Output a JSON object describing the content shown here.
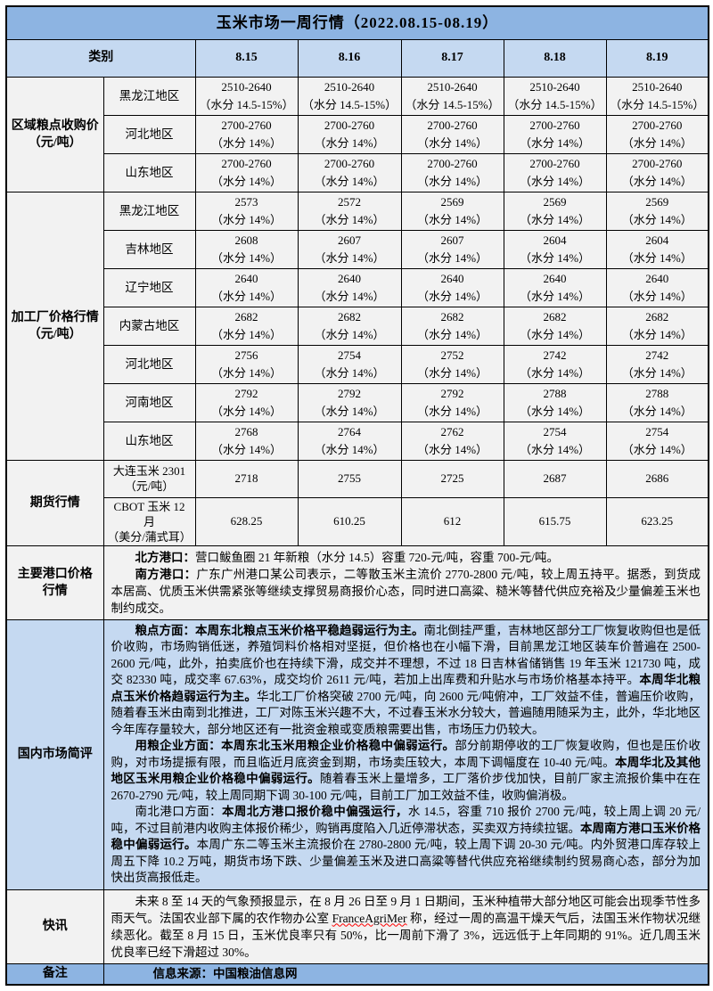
{
  "title": "玉米市场一周行情（2022.08.15-08.19）",
  "header": {
    "category": "类别",
    "dates": [
      "8.15",
      "8.16",
      "8.17",
      "8.18",
      "8.19"
    ]
  },
  "purchase": {
    "label_line1": "区域粮点收购价",
    "label_line2": "（元/吨）",
    "rows": [
      {
        "region": "黑龙江地区",
        "note": "（水分 14.5-15%）",
        "values": [
          "2510-2640",
          "2510-2640",
          "2510-2640",
          "2510-2640",
          "2510-2640"
        ]
      },
      {
        "region": "河北地区",
        "note": "（水分 14%）",
        "values": [
          "2700-2760",
          "2700-2760",
          "2700-2760",
          "2700-2760",
          "2700-2760"
        ]
      },
      {
        "region": "山东地区",
        "note": "（水分 14%）",
        "values": [
          "2700-2760",
          "2700-2760",
          "2700-2760",
          "2700-2760",
          "2700-2760"
        ]
      }
    ]
  },
  "factory": {
    "label_line1": "加工厂价格行情",
    "label_line2": "（元/吨）",
    "rows": [
      {
        "region": "黑龙江地区",
        "note": "（水分 14%）",
        "values": [
          "2573",
          "2572",
          "2569",
          "2569",
          "2569"
        ]
      },
      {
        "region": "吉林地区",
        "note": "（水分 14%）",
        "values": [
          "2608",
          "2607",
          "2607",
          "2604",
          "2604"
        ]
      },
      {
        "region": "辽宁地区",
        "note": "（水分 14%）",
        "values": [
          "2640",
          "2640",
          "2640",
          "2640",
          "2640"
        ]
      },
      {
        "region": "内蒙古地区",
        "note": "（水分 14%）",
        "values": [
          "2682",
          "2682",
          "2682",
          "2682",
          "2682"
        ]
      },
      {
        "region": "河北地区",
        "note": "（水分 14%）",
        "values": [
          "2756",
          "2754",
          "2752",
          "2742",
          "2742"
        ]
      },
      {
        "region": "河南地区",
        "note": "（水分 14%）",
        "values": [
          "2792",
          "2792",
          "2792",
          "2788",
          "2788"
        ]
      },
      {
        "region": "山东地区",
        "note": "（水分 14%）",
        "values": [
          "2768",
          "2764",
          "2762",
          "2754",
          "2754"
        ]
      }
    ]
  },
  "futures": {
    "label": "期货行情",
    "rows": [
      {
        "name_line1": "大连玉米 2301",
        "name_line2": "（元/吨）",
        "values": [
          "2718",
          "2755",
          "2725",
          "2687",
          "2686"
        ]
      },
      {
        "name_line1": "CBOT 玉米 12 月",
        "name_line2": "（美分/蒲式耳）",
        "values": [
          "628.25",
          "610.25",
          "612",
          "615.75",
          "623.25"
        ]
      }
    ]
  },
  "ports": {
    "label_line1": "主要港口价格",
    "label_line2": "行情",
    "p1": [
      {
        "t": "北方港口：",
        "b": true
      },
      {
        "t": "营口鲅鱼圈 21 年新粮（水分 14.5）容重 720-元/吨，容重 700-元/吨。",
        "b": false
      }
    ],
    "p2": [
      {
        "t": "南方港口：",
        "b": true
      },
      {
        "t": "广东广州港口某公司表示，二等散玉米主流价 2770-2800 元/吨，较上周五持平。据悉，到货成本居高、优质玉米供需紧张等继续支撑贸易商报价心态，同时进口高粱、糙米等替代供应充裕及少量偏差玉米也制约成交。",
        "b": false
      }
    ]
  },
  "review": {
    "label": "国内市场简评",
    "p1": [
      {
        "t": "粮点方面：",
        "b": true
      },
      {
        "t": "本周东北粮点玉米价格平稳趋弱运行为主。",
        "b": true
      },
      {
        "t": "南北倒挂严重，吉林地区部分工厂恢复收购但也是低价收购，市场购销低迷，养殖饲料价格相对坚挺，但价格也在小幅下滑，目前黑龙江地区装车价普遍在 2500-2600 元/吨，此外，拍卖底价也在持续下滑，成交并不理想，不过 18 日吉林省储销售 19 年玉米 121730 吨，成交 82330 吨，成交率 67.63%，成交均价 2611 元/吨，若加上出库费和升贴水与市场价格基本持平。",
        "b": false
      },
      {
        "t": "本周华北粮点玉米价格趋弱运行为主。",
        "b": true
      },
      {
        "t": "华北工厂价格突破 2700 元/吨，向 2600 元/吨俯冲，工厂效益不佳，普遍压价收购，随着春玉米由南到北推进，工厂对陈玉米兴趣不大，不过春玉米水分较大，普遍随用随采为主，此外，华北地区今年库存量较大，部分地区还有一批资金粮或变质粮需要出售，市场压力仍较大。",
        "b": false
      }
    ],
    "p2": [
      {
        "t": "用粮企业方面：",
        "b": true
      },
      {
        "t": "本周东北玉米用粮企业价格稳中偏弱运行。",
        "b": true
      },
      {
        "t": "部分前期停收的工厂恢复收购，但也是压价收购，对市场提振有限，而且临近月底资金到期，市场卖压较大，本周下调幅度在 10-40 元/吨。",
        "b": false
      },
      {
        "t": "本周华北及其他地区玉米用粮企业价格稳中偏弱运行。",
        "b": true
      },
      {
        "t": "随着春玉米上量增多，工厂落价步伐加快，目前厂家主流报价集中在在 2670-2790 元/吨，较上周同期下调 30-100 元/吨，目前工厂加工效益不佳，收购偏消极。",
        "b": false
      }
    ],
    "p3": [
      {
        "t": "南北港口方面：",
        "b": false
      },
      {
        "t": "本周北方港口报价稳中偏强运行，",
        "b": true
      },
      {
        "t": "水 14.5，容重 710 报价 2700 元/吨，较上周上调 20 元/吨，不过目前港内收购主体报价稀少，购销再度陷入几近停滞状态，买卖双方持续拉锯。",
        "b": false
      },
      {
        "t": "本周南方港口玉米价格稳中偏弱运行。",
        "b": true
      },
      {
        "t": "本周广东二等玉米主流报价在 2780-2800 元/吨，较上周下调 20-30 元/吨。内外贸港口库存较上周五下降 10.2 万吨，期货市场下跌、少量偏差玉米及进口高粱等替代供应充裕继续制约贸易商心态，部分为加快出货高报低走。",
        "b": false
      }
    ]
  },
  "express": {
    "label": "快讯",
    "p1": [
      {
        "t": "未来 8 至 14 天的气象预报显示，在 8 月 26 日至 9 月 1 日期间，玉米种植带大部分地区可能会出现季节性多雨天气。法国农业部下属的农作物办公室 ",
        "b": false
      },
      {
        "t": "FranceAgriMer",
        "b": false,
        "u": true
      },
      {
        "t": " 称，经过一周的高温干燥天气后，法国玉米作物状况继续恶化。截至 8 月 15 日，玉米优良率只有 50%，比一周前下滑了 3%，远远低于上年同期的 91%。近几周玉米优良率已经下滑超过 30%。",
        "b": false
      }
    ]
  },
  "remark": {
    "label": "备注",
    "source": "信息来源：中国粮油信息网"
  },
  "colors": {
    "title_bg": "#8db4e2",
    "header_bg": "#c5d9f1",
    "body_bg": "#f2f2f2",
    "review_bg": "#c5d9f1",
    "remark_bg": "#8db4e2",
    "border": "#000000",
    "spellcheck_underline": "#ff0000"
  }
}
